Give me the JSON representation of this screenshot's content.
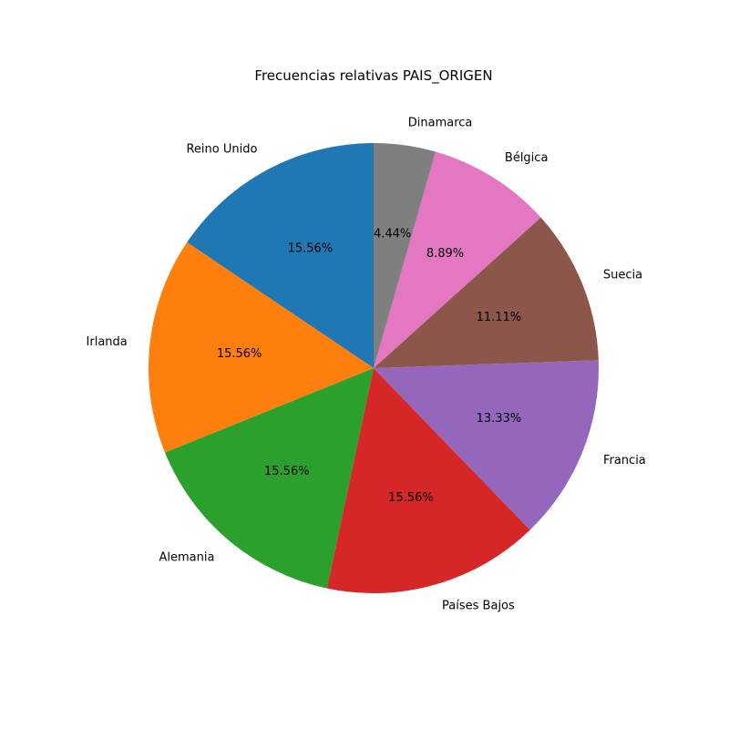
{
  "chart_data": {
    "type": "pie",
    "title": "Frecuencias relativas PAIS_ORIGEN",
    "categories": [
      "Reino Unido",
      "Irlanda",
      "Alemania",
      "Países Bajos",
      "Francia",
      "Suecia",
      "Bélgica",
      "Dinamarca"
    ],
    "values": [
      15.56,
      15.56,
      15.56,
      15.56,
      13.33,
      11.11,
      8.89,
      4.44
    ],
    "value_labels": [
      "15.56%",
      "15.56%",
      "15.56%",
      "15.56%",
      "13.33%",
      "11.11%",
      "8.89%",
      "4.44%"
    ],
    "colors": [
      "#1f77b4",
      "#ff7f0e",
      "#2ca02c",
      "#d62728",
      "#9467bd",
      "#8c564b",
      "#e377c2",
      "#7f7f7f"
    ],
    "start_angle_deg": 90,
    "direction": "counterclockwise"
  }
}
